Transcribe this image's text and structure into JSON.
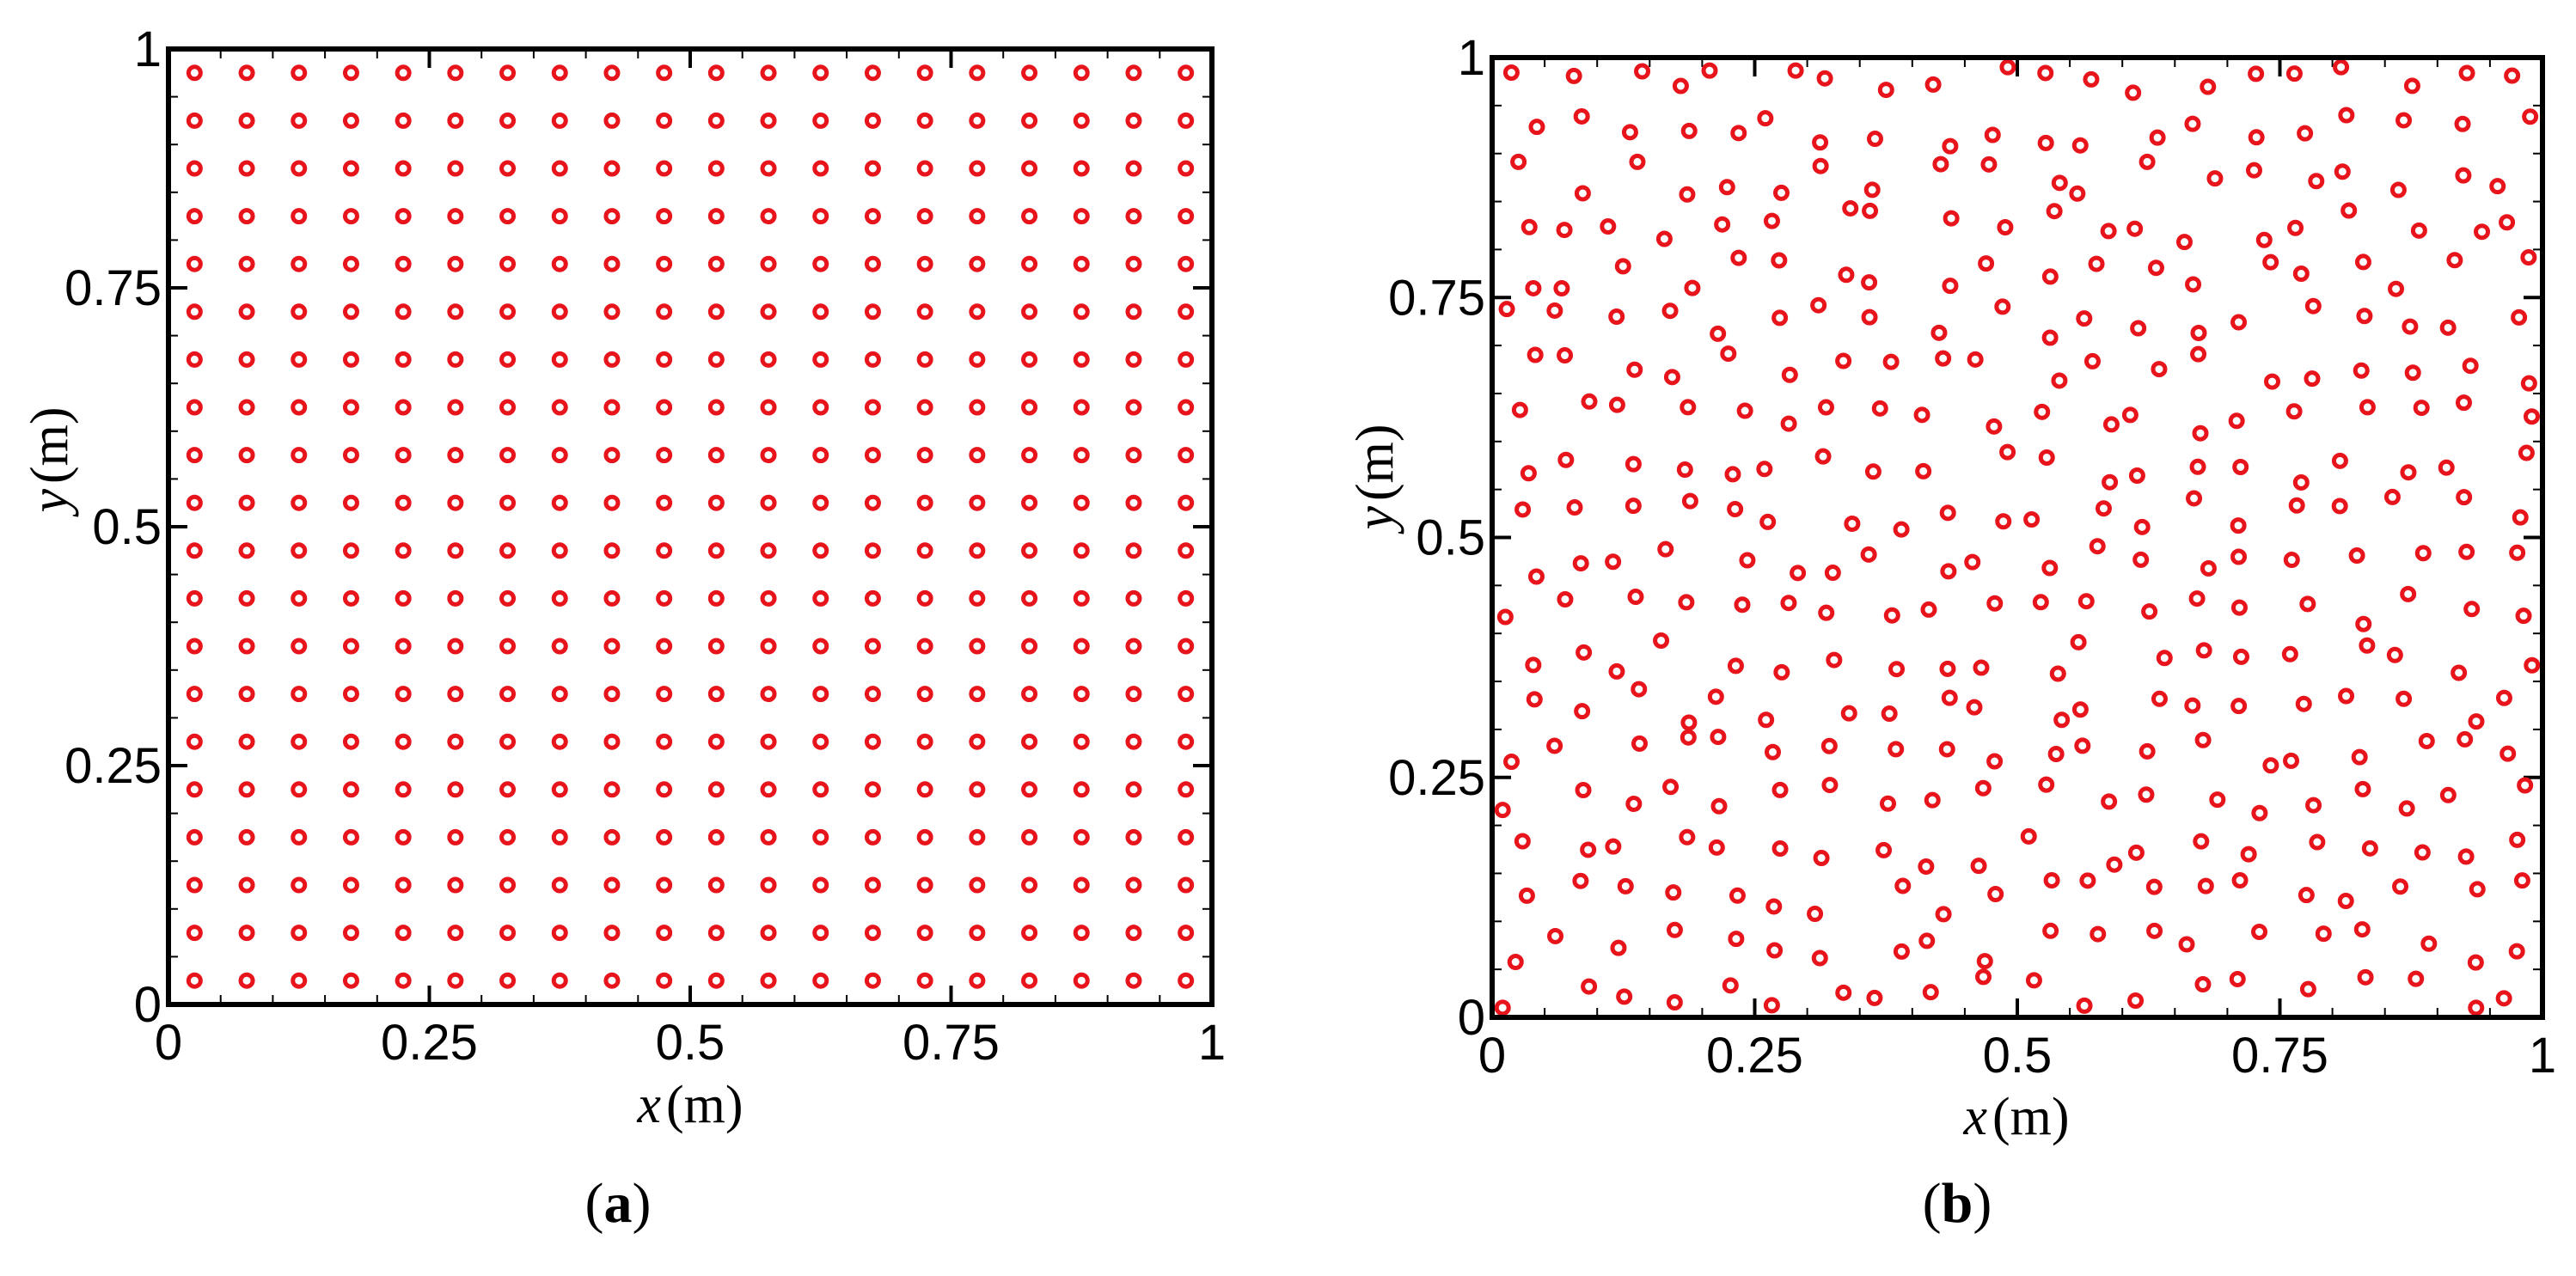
{
  "chart_data": [
    {
      "id": "a",
      "type": "scatter",
      "caption": {
        "open": "(",
        "letter": "a",
        "close": ")"
      },
      "title": "",
      "xlabel": {
        "var": "x",
        "unit": "(m)"
      },
      "ylabel": {
        "var": "y",
        "unit": "(m)"
      },
      "xlim": [
        0,
        1
      ],
      "ylim": [
        0,
        1
      ],
      "xticks": [
        0,
        0.25,
        0.5,
        0.75,
        1
      ],
      "yticks": [
        0,
        0.25,
        0.5,
        0.75,
        1
      ],
      "xtick_labels": [
        "0",
        "0.25",
        "0.5",
        "0.75",
        "1"
      ],
      "ytick_labels": [
        "0",
        "0.25",
        "0.5",
        "0.75",
        "1"
      ],
      "grid": false,
      "marker": "open-circle",
      "marker_color": "#e8141b",
      "layout": "uniform-grid",
      "grid_points": {
        "nx": 20,
        "ny": 20,
        "start": 0.025,
        "step": 0.05
      }
    },
    {
      "id": "b",
      "type": "scatter",
      "caption": {
        "open": "(",
        "letter": "b",
        "close": ")"
      },
      "title": "",
      "xlabel": {
        "var": "x",
        "unit": "(m)"
      },
      "ylabel": {
        "var": "y",
        "unit": "(m)"
      },
      "xlim": [
        0,
        1
      ],
      "ylim": [
        0,
        1
      ],
      "xticks": [
        0,
        0.25,
        0.5,
        0.75,
        1
      ],
      "yticks": [
        0,
        0.25,
        0.5,
        0.75,
        1
      ],
      "xtick_labels": [
        "0",
        "0.25",
        "0.5",
        "0.75",
        "1"
      ],
      "ytick_labels": [
        "0",
        "0.25",
        "0.5",
        "0.75",
        "1"
      ],
      "grid": false,
      "marker": "open-circle",
      "marker_color": "#e8141b",
      "layout": "perturbed-grid",
      "perturbed_points": {
        "nx": 20,
        "ny": 20,
        "start": 0.025,
        "step": 0.05,
        "max_offset": 0.018,
        "seed": 7
      }
    }
  ]
}
